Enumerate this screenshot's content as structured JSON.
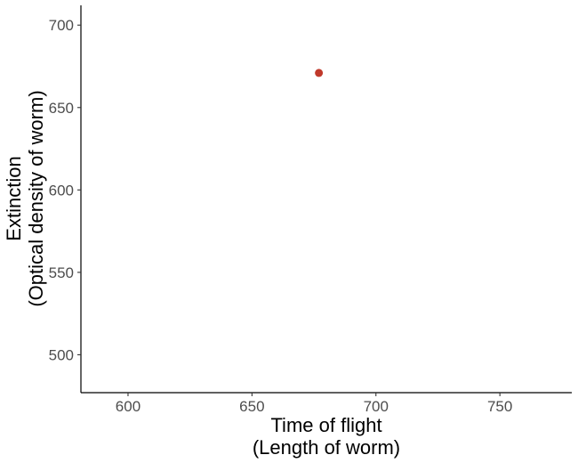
{
  "chart_data": {
    "type": "scatter",
    "title": "",
    "xlabel": [
      "Time of flight",
      "(Length of worm)"
    ],
    "ylabel": [
      "Extinction",
      "(Optical density of worm)"
    ],
    "xlim": [
      581,
      779
    ],
    "ylim": [
      477,
      712
    ],
    "xticks": [
      600,
      650,
      700,
      750
    ],
    "yticks": [
      500,
      550,
      600,
      650,
      700
    ],
    "grid": false,
    "legend": "none",
    "point_color": "#c0392b",
    "points": [
      {
        "x": 677,
        "y": 671
      }
    ]
  }
}
